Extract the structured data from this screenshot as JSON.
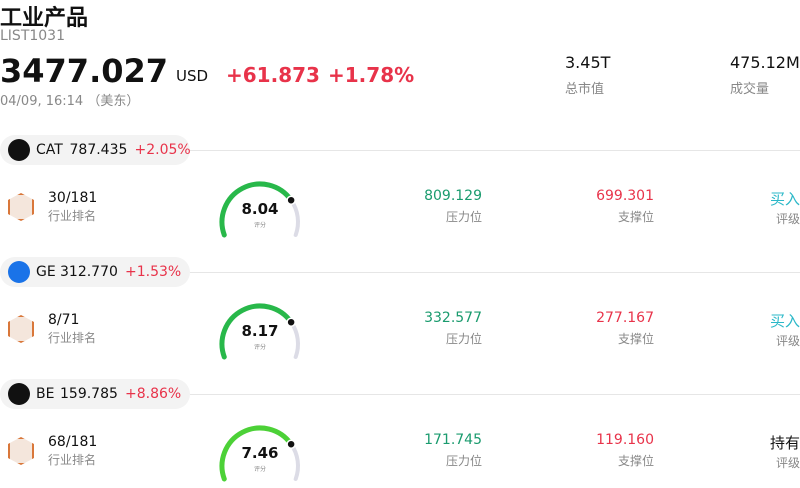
{
  "header": {
    "title": "工业产品",
    "code": "LIST1031",
    "price": "3477.027",
    "currency": "USD",
    "change": "+61.873",
    "change_pct": "+1.78%",
    "time": "04/09, 16:14 （美东）",
    "stats": [
      {
        "value": "3.45T",
        "label": "总市值"
      },
      {
        "value": "475.12M",
        "label": "成交量"
      }
    ]
  },
  "stocks": [
    {
      "ticker": "CAT",
      "price": "787.435",
      "change": "+2.05%",
      "rank": "30/181",
      "rank_label": "行业排名",
      "score": "8.04",
      "score_label": "评分",
      "resistance": "809.129",
      "resistance_label": "压力位",
      "support": "699.301",
      "support_label": "支撑位",
      "rating": "买入",
      "rating_label": "评级"
    },
    {
      "ticker": "GE",
      "price": "312.770",
      "change": "+1.53%",
      "rank": "8/71",
      "rank_label": "行业排名",
      "score": "8.17",
      "score_label": "评分",
      "resistance": "332.577",
      "resistance_label": "压力位",
      "support": "277.167",
      "support_label": "支撑位",
      "rating": "买入",
      "rating_label": "评级"
    },
    {
      "ticker": "BE",
      "price": "159.785",
      "change": "+8.86%",
      "rank": "68/181",
      "rank_label": "行业排名",
      "score": "7.46",
      "score_label": "评分",
      "resistance": "171.745",
      "resistance_label": "压力位",
      "support": "119.160",
      "support_label": "支撑位",
      "rating": "持有",
      "rating_label": "评级"
    }
  ]
}
